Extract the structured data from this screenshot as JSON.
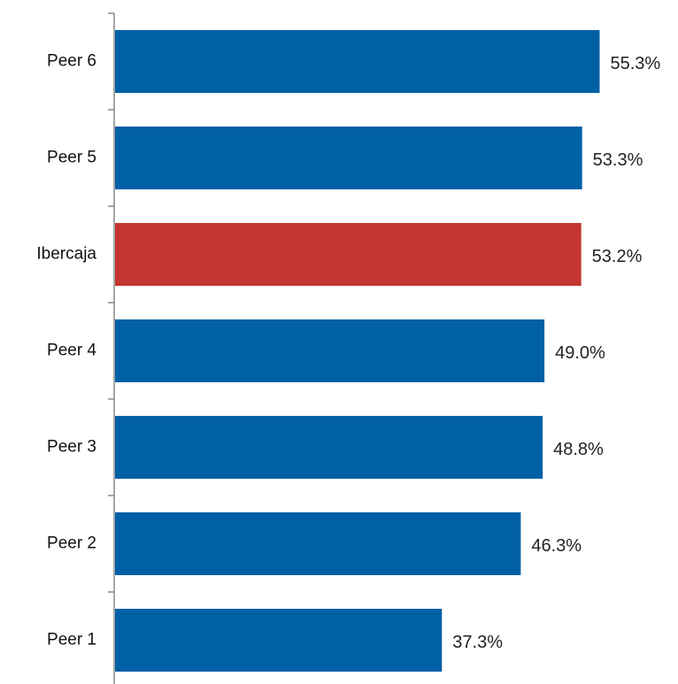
{
  "chart_data": {
    "type": "bar",
    "orientation": "horizontal",
    "categories": [
      "Peer 6",
      "Peer 5",
      "Ibercaja",
      "Peer 4",
      "Peer 3",
      "Peer 2",
      "Peer 1"
    ],
    "values": [
      55.3,
      53.3,
      53.2,
      49.0,
      48.8,
      46.3,
      37.3
    ],
    "value_labels": [
      "55.3%",
      "53.3%",
      "53.2%",
      "49.0%",
      "48.8%",
      "46.3%",
      "37.3%"
    ],
    "unit": "%",
    "xlim": [
      0,
      60
    ],
    "grid": false,
    "legend": "none",
    "colors": {
      "default": "#0060a6",
      "highlight": "#c43531",
      "axis": "#888888"
    },
    "highlight_category": "Ibercaja"
  }
}
